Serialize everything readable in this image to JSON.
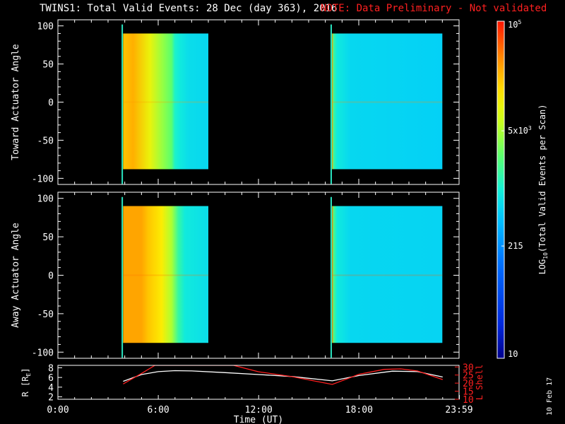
{
  "header": {
    "title": "TWINS1: Total Valid Events: 28 Dec (day 363), 2016",
    "note": "NOTE: Data Preliminary - Not validated",
    "note_color": "#ff2020"
  },
  "stamp": "10 Feb 17",
  "chart_data": [
    {
      "type": "heatmap",
      "name": "toward",
      "ylabel": "Toward Actuator Angle",
      "ylim": [
        -108,
        108
      ],
      "yticks": [
        100,
        50,
        0,
        -50,
        -100
      ],
      "xlim": [
        0,
        24
      ],
      "blocks": [
        {
          "t_start": 3.9,
          "t_end": 9.0,
          "angle_min": -88,
          "angle_max": 90,
          "profile": [
            [
              3.9,
              4.3
            ],
            [
              4.5,
              4.4
            ],
            [
              5.5,
              4.0
            ],
            [
              6.3,
              3.6
            ],
            [
              6.8,
              3.4
            ],
            [
              7.0,
              3.05
            ],
            [
              7.3,
              2.95
            ],
            [
              7.8,
              2.85
            ],
            [
              9.0,
              2.8
            ]
          ]
        },
        {
          "t_start": 16.4,
          "t_end": 23.0,
          "angle_min": -88,
          "angle_max": 90,
          "profile": [
            [
              16.4,
              4.35
            ],
            [
              16.5,
              3.2
            ],
            [
              16.7,
              2.95
            ],
            [
              17.5,
              2.8
            ],
            [
              23.0,
              2.75
            ]
          ]
        }
      ],
      "markers": [
        {
          "t": 3.85,
          "color": "#29e5c0"
        },
        {
          "t": 16.35,
          "color": "#29e5c0"
        }
      ]
    },
    {
      "type": "heatmap",
      "name": "away",
      "ylabel": "Away Actuator Angle",
      "ylim": [
        -108,
        108
      ],
      "yticks": [
        100,
        50,
        0,
        -50,
        -100
      ],
      "xlim": [
        0,
        24
      ],
      "blocks": [
        {
          "t_start": 3.9,
          "t_end": 9.0,
          "angle_min": -88,
          "angle_max": 90,
          "profile": [
            [
              3.9,
              4.45
            ],
            [
              5.0,
              4.45
            ],
            [
              5.4,
              4.3
            ],
            [
              6.2,
              4.1
            ],
            [
              6.8,
              3.7
            ],
            [
              7.2,
              3.2
            ],
            [
              7.6,
              2.95
            ],
            [
              9.0,
              2.85
            ]
          ]
        },
        {
          "t_start": 16.4,
          "t_end": 23.0,
          "angle_min": -88,
          "angle_max": 90,
          "profile": [
            [
              16.4,
              4.5
            ],
            [
              16.5,
              3.3
            ],
            [
              16.7,
              2.95
            ],
            [
              17.5,
              2.8
            ],
            [
              23.0,
              2.78
            ]
          ]
        }
      ],
      "markers": [
        {
          "t": 3.85,
          "color": "#29e5c0"
        },
        {
          "t": 16.35,
          "color": "#29e5c0"
        }
      ]
    },
    {
      "type": "line",
      "name": "orbit",
      "ylabel_left": "R [R",
      "ylabel_left_sub": "E",
      "ylabel_left_close": "]",
      "ylabel_right": "L Shell",
      "ylim_left": [
        1.5,
        8.5
      ],
      "yticks_left": [
        8,
        6,
        4,
        2
      ],
      "ylim_right": [
        10,
        31
      ],
      "yticks_right": [
        30,
        25,
        20,
        15,
        10
      ],
      "xlim": [
        0,
        23.98
      ],
      "xticks": [
        {
          "t": 0,
          "label": "0:00"
        },
        {
          "t": 6,
          "label": "6:00"
        },
        {
          "t": 12,
          "label": "12:00"
        },
        {
          "t": 18,
          "label": "18:00"
        },
        {
          "t": 23.98,
          "label": "23:59"
        }
      ],
      "xlabel": "Time (UT)",
      "series": [
        {
          "color": "#ffffff",
          "x": [
            3.9,
            5.0,
            6.0,
            7.0,
            8.0,
            10.0,
            12.0,
            14.0,
            16.4,
            18.0,
            20.0,
            21.5,
            23.0
          ],
          "y": [
            5.2,
            6.6,
            7.2,
            7.4,
            7.35,
            7.0,
            6.6,
            6.2,
            5.3,
            6.4,
            7.3,
            7.2,
            6.1
          ]
        },
        {
          "color": "#ff2020",
          "x": [
            3.9,
            5.0,
            5.8,
            10.5,
            12.0,
            14.0,
            16.4,
            18.0,
            19.5,
            20.5,
            21.5,
            23.0
          ],
          "y": [
            19.5,
            26.0,
            31.0,
            31.0,
            27.0,
            24.0,
            19.2,
            25.5,
            28.5,
            28.8,
            27.5,
            22.2
          ]
        }
      ]
    }
  ],
  "colorbar": {
    "label_prefix": "LOG",
    "label_sub": "10",
    "label_suffix": "(Total Valid Events per Scan)",
    "min": 1,
    "max": 5,
    "ticks": [
      {
        "v": 5,
        "base": "10",
        "sup": "5"
      },
      {
        "v": 3.699,
        "base": "5x10",
        "sup": "3"
      },
      {
        "v": 2.3324,
        "base": "215",
        "sup": ""
      },
      {
        "v": 1,
        "base": "10",
        "sup": ""
      }
    ]
  }
}
